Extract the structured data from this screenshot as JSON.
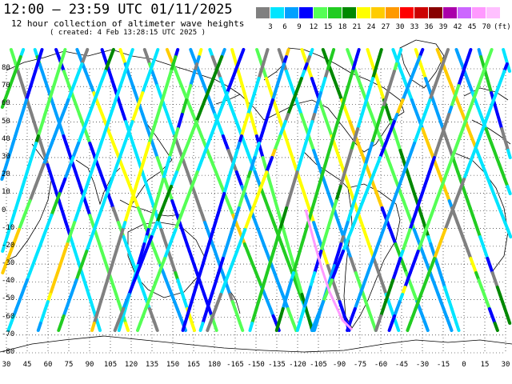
{
  "header": {
    "title": "12:00 – 23:59 UTC 01/11/2025",
    "subtitle": "12 hour collection of altimeter wave heights",
    "created": "( created:  4 Feb 13:28:15 UTC 2025 )"
  },
  "legend": {
    "ticks": [
      "3",
      "6",
      "9",
      "12",
      "15",
      "18",
      "21",
      "24",
      "27",
      "30",
      "33",
      "36",
      "39",
      "42",
      "45",
      "70"
    ],
    "unit": "(ft)",
    "colors": [
      "#808080",
      "#00e5ff",
      "#00a0ff",
      "#0000ff",
      "#55ff55",
      "#22cc22",
      "#008800",
      "#ffff00",
      "#ffcc00",
      "#ff9900",
      "#ff0000",
      "#cc0000",
      "#880000",
      "#aa00aa",
      "#cc66ff",
      "#ff99ff",
      "#ffc0ff"
    ]
  },
  "axes": {
    "lat_labels": [
      "80",
      "70",
      "60",
      "50",
      "40",
      "30",
      "20",
      "10",
      "0",
      "-10",
      "-20",
      "-30",
      "-40",
      "-50",
      "-60",
      "-70",
      "-80"
    ],
    "lon_labels": [
      "30",
      "45",
      "60",
      "75",
      "90",
      "105",
      "120",
      "135",
      "150",
      "165",
      "180",
      "-165",
      "-150",
      "-135",
      "-120",
      "-105",
      "-90",
      "-75",
      "-60",
      "-45",
      "-30",
      "-15",
      "0",
      "15",
      "30"
    ]
  },
  "map": {
    "land_color": "#ffffff",
    "coast_color": "#000000",
    "grid_color": "#000000",
    "grid": true
  }
}
